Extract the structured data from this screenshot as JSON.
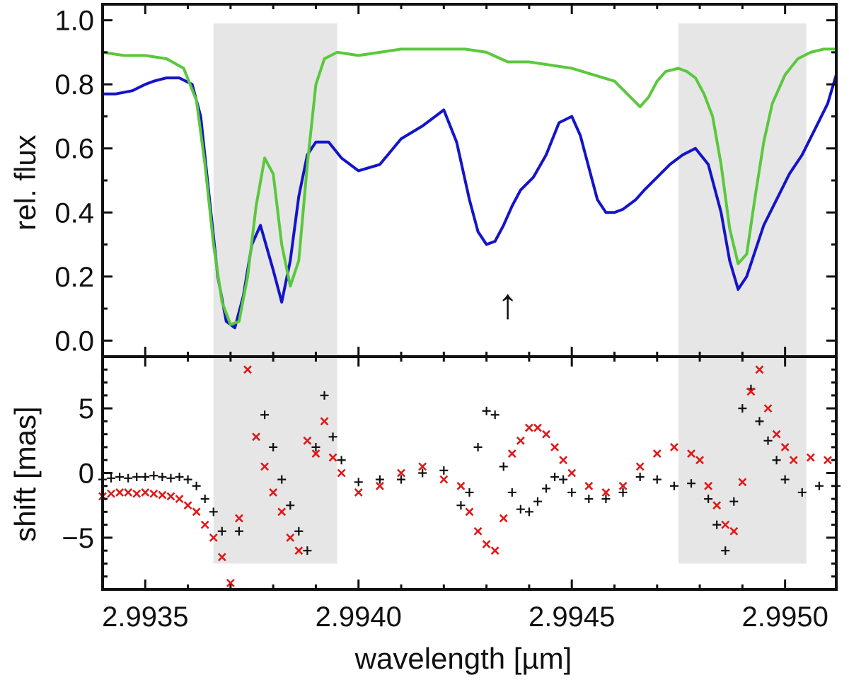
{
  "chart_data": [
    {
      "type": "line",
      "panel": "top",
      "xlabel": "",
      "ylabel": "rel. flux",
      "xlim": [
        2.9934,
        2.99512
      ],
      "ylim": [
        -0.05,
        1.05
      ],
      "yticks": [
        "0.0",
        "0.2",
        "0.4",
        "0.6",
        "0.8",
        "1.0"
      ],
      "shaded_regions": [
        [
          2.99366,
          2.99395
        ],
        [
          2.99475,
          2.99505
        ]
      ],
      "annotation": {
        "text": "↑",
        "x": 2.99435,
        "y": 0.07
      },
      "series": [
        {
          "name": "blue spectrum",
          "color": "#1414c8",
          "x": [
            2.9934,
            2.99343,
            2.99347,
            2.9935,
            2.99352,
            2.99355,
            2.99358,
            2.99361,
            2.99363,
            2.99365,
            2.99367,
            2.99369,
            2.99371,
            2.99373,
            2.99375,
            2.99377,
            2.9938,
            2.99382,
            2.99384,
            2.99386,
            2.99388,
            2.9939,
            2.99393,
            2.99396,
            2.994,
            2.99405,
            2.9941,
            2.99415,
            2.9942,
            2.99423,
            2.99426,
            2.99428,
            2.9943,
            2.99432,
            2.99434,
            2.99436,
            2.99438,
            2.99441,
            2.99444,
            2.99447,
            2.9945,
            2.99452,
            2.99454,
            2.99456,
            2.99458,
            2.9946,
            2.99462,
            2.99465,
            2.99467,
            2.9947,
            2.99473,
            2.99476,
            2.99479,
            2.99482,
            2.99485,
            2.99487,
            2.99489,
            2.99491,
            2.99493,
            2.99495,
            2.99498,
            2.99501,
            2.99504,
            2.99507,
            2.9951,
            2.99512
          ],
          "y": [
            0.77,
            0.77,
            0.78,
            0.8,
            0.81,
            0.82,
            0.82,
            0.8,
            0.7,
            0.45,
            0.2,
            0.06,
            0.04,
            0.14,
            0.3,
            0.36,
            0.22,
            0.12,
            0.25,
            0.45,
            0.58,
            0.62,
            0.62,
            0.57,
            0.53,
            0.55,
            0.63,
            0.67,
            0.72,
            0.62,
            0.44,
            0.34,
            0.3,
            0.31,
            0.36,
            0.42,
            0.47,
            0.51,
            0.58,
            0.68,
            0.7,
            0.64,
            0.54,
            0.44,
            0.4,
            0.4,
            0.41,
            0.44,
            0.47,
            0.51,
            0.55,
            0.58,
            0.6,
            0.55,
            0.4,
            0.25,
            0.16,
            0.2,
            0.28,
            0.36,
            0.44,
            0.52,
            0.58,
            0.66,
            0.74,
            0.83
          ]
        },
        {
          "name": "green spectrum",
          "color": "#5ac83c",
          "x": [
            2.9934,
            2.99345,
            2.9935,
            2.99355,
            2.99359,
            2.99362,
            2.99364,
            2.99366,
            2.99368,
            2.9937,
            2.99372,
            2.99374,
            2.99376,
            2.99378,
            2.9938,
            2.99382,
            2.99384,
            2.99386,
            2.99388,
            2.9939,
            2.99392,
            2.99395,
            2.994,
            2.99405,
            2.9941,
            2.99415,
            2.9942,
            2.99425,
            2.9943,
            2.99435,
            2.9944,
            2.99445,
            2.9945,
            2.99455,
            2.9946,
            2.99463,
            2.99466,
            2.99468,
            2.9947,
            2.99472,
            2.99475,
            2.99477,
            2.99479,
            2.99481,
            2.99483,
            2.99485,
            2.99487,
            2.99489,
            2.99491,
            2.99493,
            2.99495,
            2.99497,
            2.995,
            2.99503,
            2.99506,
            2.99509,
            2.99512
          ],
          "y": [
            0.9,
            0.89,
            0.89,
            0.88,
            0.85,
            0.75,
            0.55,
            0.3,
            0.12,
            0.05,
            0.06,
            0.2,
            0.42,
            0.57,
            0.52,
            0.3,
            0.17,
            0.25,
            0.55,
            0.8,
            0.88,
            0.9,
            0.89,
            0.9,
            0.91,
            0.91,
            0.91,
            0.91,
            0.9,
            0.87,
            0.87,
            0.86,
            0.85,
            0.83,
            0.81,
            0.77,
            0.73,
            0.76,
            0.81,
            0.84,
            0.85,
            0.84,
            0.82,
            0.77,
            0.7,
            0.55,
            0.35,
            0.24,
            0.27,
            0.45,
            0.62,
            0.74,
            0.83,
            0.88,
            0.9,
            0.91,
            0.91
          ]
        }
      ]
    },
    {
      "type": "scatter",
      "panel": "bottom",
      "xlabel": "wavelength [µm]",
      "ylabel": "shift [mas]",
      "xlim": [
        2.9934,
        2.99512
      ],
      "ylim": [
        -9,
        9
      ],
      "xticks": [
        "2.9935",
        "2.9940",
        "2.9945",
        "2.9950"
      ],
      "yticks": [
        "−5",
        "0",
        "5"
      ],
      "shaded_regions": [
        [
          2.99366,
          2.99395
        ],
        [
          2.99475,
          2.99505
        ]
      ],
      "series": [
        {
          "name": "black plus",
          "color": "#111111",
          "marker": "+",
          "x": [
            2.9934,
            2.99342,
            2.99344,
            2.99346,
            2.99348,
            2.9935,
            2.99352,
            2.99354,
            2.99356,
            2.99358,
            2.9936,
            2.99362,
            2.99364,
            2.99366,
            2.99368,
            2.99372,
            2.99378,
            2.9938,
            2.99382,
            2.99384,
            2.99386,
            2.99388,
            2.9939,
            2.99392,
            2.99394,
            2.99396,
            2.994,
            2.99405,
            2.9941,
            2.99415,
            2.9942,
            2.99424,
            2.99426,
            2.99428,
            2.9943,
            2.99432,
            2.99434,
            2.99436,
            2.99438,
            2.9944,
            2.99442,
            2.99444,
            2.99446,
            2.99448,
            2.9945,
            2.99454,
            2.99458,
            2.99462,
            2.99466,
            2.9947,
            2.99474,
            2.99478,
            2.99482,
            2.99484,
            2.99486,
            2.99488,
            2.9949,
            2.99492,
            2.99494,
            2.99496,
            2.99498,
            2.995,
            2.99504,
            2.99508,
            2.99512
          ],
          "y": [
            -0.5,
            -0.4,
            -0.3,
            -0.4,
            -0.3,
            -0.3,
            -0.2,
            -0.3,
            -0.4,
            -0.3,
            -0.5,
            -1.0,
            -2.0,
            -3.0,
            -4.5,
            -4.5,
            4.5,
            2.0,
            -0.5,
            -2.5,
            -4.5,
            -6.0,
            2.0,
            6.0,
            2.8,
            1.0,
            -0.7,
            -0.5,
            -0.5,
            0.0,
            0.2,
            -2.5,
            -1.5,
            2.0,
            4.8,
            4.5,
            0.5,
            -1.5,
            -2.8,
            -3.0,
            -2.2,
            -1.2,
            -0.3,
            -0.5,
            -1.5,
            -2.0,
            -2.0,
            -1.5,
            -0.3,
            -0.5,
            -1.0,
            -0.8,
            -2.0,
            -4.0,
            -6.0,
            -2.2,
            5.0,
            6.5,
            4.0,
            2.5,
            1.0,
            -0.5,
            -1.5,
            -1.0,
            -1.0
          ]
        },
        {
          "name": "red cross",
          "color": "#e01818",
          "marker": "x",
          "x": [
            2.9934,
            2.99342,
            2.99344,
            2.99346,
            2.99348,
            2.9935,
            2.99352,
            2.99354,
            2.99356,
            2.99358,
            2.9936,
            2.99362,
            2.99364,
            2.99366,
            2.99368,
            2.9937,
            2.99372,
            2.99374,
            2.99376,
            2.99378,
            2.9938,
            2.99382,
            2.99384,
            2.99386,
            2.99388,
            2.9939,
            2.99392,
            2.99394,
            2.99396,
            2.994,
            2.99405,
            2.9941,
            2.99415,
            2.9942,
            2.99424,
            2.99426,
            2.99428,
            2.9943,
            2.99432,
            2.99434,
            2.99436,
            2.99438,
            2.9944,
            2.99442,
            2.99444,
            2.99446,
            2.99448,
            2.9945,
            2.99454,
            2.99458,
            2.99462,
            2.99466,
            2.9947,
            2.99474,
            2.99478,
            2.9948,
            2.99482,
            2.99484,
            2.99486,
            2.99488,
            2.9949,
            2.99492,
            2.99494,
            2.99496,
            2.99498,
            2.995,
            2.99502,
            2.99506,
            2.9951
          ],
          "y": [
            -1.8,
            -1.6,
            -1.5,
            -1.5,
            -1.6,
            -1.5,
            -1.6,
            -1.7,
            -1.8,
            -2.0,
            -2.5,
            -3.0,
            -4.0,
            -5.0,
            -6.5,
            -8.5,
            -3.5,
            8.0,
            2.8,
            0.5,
            -1.5,
            -3.0,
            -5.0,
            -6.0,
            2.5,
            1.5,
            4.0,
            1.2,
            0.0,
            -1.5,
            -1.0,
            0.0,
            0.5,
            -0.5,
            -1.0,
            -3.0,
            -4.5,
            -5.5,
            -6.0,
            -3.5,
            1.5,
            2.5,
            3.5,
            3.5,
            3.0,
            2.0,
            1.0,
            0.0,
            -1.0,
            -1.5,
            -1.0,
            0.5,
            1.5,
            2.0,
            1.5,
            1.0,
            -1.0,
            -2.5,
            -4.0,
            -4.5,
            -0.7,
            6.3,
            8.0,
            5.0,
            3.0,
            2.0,
            1.0,
            1.2,
            1.0
          ]
        }
      ]
    }
  ]
}
